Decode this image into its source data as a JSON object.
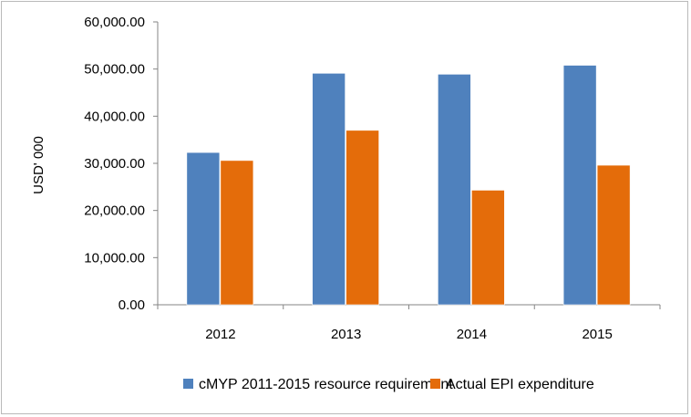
{
  "chart_data": {
    "type": "bar",
    "categories": [
      "2012",
      "2013",
      "2014",
      "2015"
    ],
    "series": [
      {
        "name": "cMYP 2011-2015 resource requirement",
        "values": [
          32300,
          49100,
          48900,
          50800
        ],
        "color": "#4f81bd"
      },
      {
        "name": "Actual EPI expenditure",
        "values": [
          30600,
          37000,
          24300,
          29600
        ],
        "color": "#e46c0a"
      }
    ],
    "ylabel": "USD' 000",
    "ylim": [
      0,
      60000
    ],
    "yticks": [
      "0.00",
      "10,000.00",
      "20,000.00",
      "30,000.00",
      "40,000.00",
      "50,000.00",
      "60,000.00"
    ],
    "grid": false,
    "legend_position": "bottom"
  }
}
